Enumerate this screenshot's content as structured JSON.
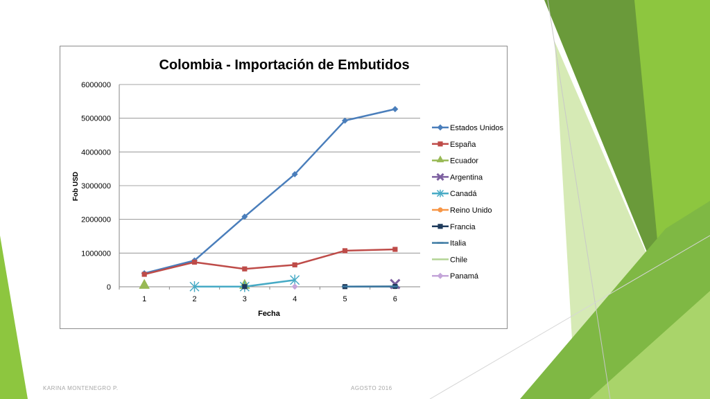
{
  "slide": {
    "footer_left": "KARINA MONTENEGRO P.",
    "footer_right": "AGOSTO 2016",
    "accent_colors": [
      "#6a9a3a",
      "#8dc63f",
      "#a9d46a",
      "#cfe6a8"
    ]
  },
  "chart_data": {
    "type": "line",
    "title": "Colombia - Importación de Embutidos",
    "xlabel": "Fecha",
    "ylabel": "Fob USD",
    "categories": [
      "1",
      "2",
      "3",
      "4",
      "5",
      "6"
    ],
    "ylim": [
      0,
      6000000
    ],
    "yticks": [
      "0",
      "1000000",
      "2000000",
      "3000000",
      "4000000",
      "5000000",
      "6000000"
    ],
    "grid": true,
    "legend_position": "right",
    "series": [
      {
        "name": "Estados Unidos",
        "color": "#4a7ebb",
        "marker": "diamond",
        "values": [
          400000,
          780000,
          2080000,
          3340000,
          4930000,
          5270000
        ]
      },
      {
        "name": "España",
        "color": "#be4b48",
        "marker": "square",
        "values": [
          370000,
          730000,
          530000,
          650000,
          1070000,
          1110000
        ]
      },
      {
        "name": "Ecuador",
        "color": "#98b954",
        "marker": "triangle",
        "values": [
          20000,
          null,
          20000,
          null,
          null,
          null
        ]
      },
      {
        "name": "Argentina",
        "color": "#7d60a0",
        "marker": "x",
        "values": [
          null,
          null,
          null,
          null,
          null,
          80000
        ]
      },
      {
        "name": "Canadá",
        "color": "#46aac5",
        "marker": "star",
        "values": [
          null,
          5000,
          5000,
          200000,
          null,
          null
        ]
      },
      {
        "name": "Reino Unido",
        "color": "#f79646",
        "marker": "circle",
        "values": [
          null,
          null,
          null,
          null,
          5000,
          5000
        ]
      },
      {
        "name": "Francia",
        "color": "#1f3b5c",
        "marker": "square",
        "values": [
          null,
          null,
          5000,
          null,
          5000,
          10000
        ]
      },
      {
        "name": "Italia",
        "color": "#3d7aa3",
        "marker": "dash",
        "values": [
          null,
          null,
          null,
          null,
          8000,
          8000
        ]
      },
      {
        "name": "Chile",
        "color": "#b3d494",
        "marker": "none",
        "values": [
          null,
          null,
          null,
          null,
          null,
          null
        ]
      },
      {
        "name": "Panamá",
        "color": "#c4a5d9",
        "marker": "diamond",
        "values": [
          null,
          null,
          null,
          5000,
          null,
          null
        ]
      }
    ]
  }
}
